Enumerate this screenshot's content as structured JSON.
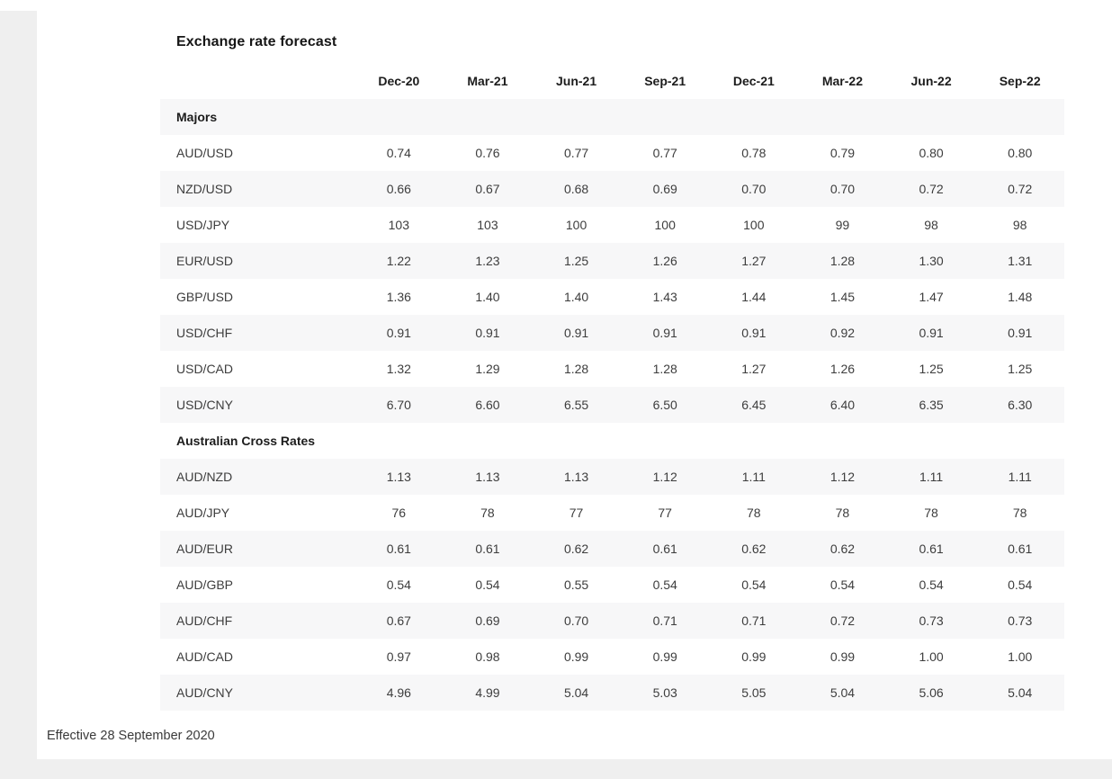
{
  "title": "Exchange rate forecast",
  "footnote": "Effective 28 September 2020",
  "colors": {
    "row_stripe": "#f7f7f8",
    "page_band": "#efefef",
    "body_text": "#3d3d3d",
    "heading_text": "#1c1c1c"
  },
  "chart_data": {
    "type": "table",
    "title": "Exchange rate forecast",
    "columns": [
      "Dec-20",
      "Mar-21",
      "Jun-21",
      "Sep-21",
      "Dec-21",
      "Mar-22",
      "Jun-22",
      "Sep-22"
    ],
    "sections": [
      {
        "name": "Majors",
        "rows": [
          {
            "pair": "AUD/USD",
            "values": [
              "0.74",
              "0.76",
              "0.77",
              "0.77",
              "0.78",
              "0.79",
              "0.80",
              "0.80"
            ]
          },
          {
            "pair": "NZD/USD",
            "values": [
              "0.66",
              "0.67",
              "0.68",
              "0.69",
              "0.70",
              "0.70",
              "0.72",
              "0.72"
            ]
          },
          {
            "pair": "USD/JPY",
            "values": [
              "103",
              "103",
              "100",
              "100",
              "100",
              "99",
              "98",
              "98"
            ]
          },
          {
            "pair": "EUR/USD",
            "values": [
              "1.22",
              "1.23",
              "1.25",
              "1.26",
              "1.27",
              "1.28",
              "1.30",
              "1.31"
            ]
          },
          {
            "pair": "GBP/USD",
            "values": [
              "1.36",
              "1.40",
              "1.40",
              "1.43",
              "1.44",
              "1.45",
              "1.47",
              "1.48"
            ]
          },
          {
            "pair": "USD/CHF",
            "values": [
              "0.91",
              "0.91",
              "0.91",
              "0.91",
              "0.91",
              "0.92",
              "0.91",
              "0.91"
            ]
          },
          {
            "pair": "USD/CAD",
            "values": [
              "1.32",
              "1.29",
              "1.28",
              "1.28",
              "1.27",
              "1.26",
              "1.25",
              "1.25"
            ]
          },
          {
            "pair": "USD/CNY",
            "values": [
              "6.70",
              "6.60",
              "6.55",
              "6.50",
              "6.45",
              "6.40",
              "6.35",
              "6.30"
            ]
          }
        ]
      },
      {
        "name": "Australian Cross Rates",
        "rows": [
          {
            "pair": "AUD/NZD",
            "values": [
              "1.13",
              "1.13",
              "1.13",
              "1.12",
              "1.11",
              "1.12",
              "1.11",
              "1.11"
            ]
          },
          {
            "pair": "AUD/JPY",
            "values": [
              "76",
              "78",
              "77",
              "77",
              "78",
              "78",
              "78",
              "78"
            ]
          },
          {
            "pair": "AUD/EUR",
            "values": [
              "0.61",
              "0.61",
              "0.62",
              "0.61",
              "0.62",
              "0.62",
              "0.61",
              "0.61"
            ]
          },
          {
            "pair": "AUD/GBP",
            "values": [
              "0.54",
              "0.54",
              "0.55",
              "0.54",
              "0.54",
              "0.54",
              "0.54",
              "0.54"
            ]
          },
          {
            "pair": "AUD/CHF",
            "values": [
              "0.67",
              "0.69",
              "0.70",
              "0.71",
              "0.71",
              "0.72",
              "0.73",
              "0.73"
            ]
          },
          {
            "pair": "AUD/CAD",
            "values": [
              "0.97",
              "0.98",
              "0.99",
              "0.99",
              "0.99",
              "0.99",
              "1.00",
              "1.00"
            ]
          },
          {
            "pair": "AUD/CNY",
            "values": [
              "4.96",
              "4.99",
              "5.04",
              "5.03",
              "5.05",
              "5.04",
              "5.06",
              "5.04"
            ]
          }
        ]
      }
    ],
    "footnote": "Effective 28 September 2020",
    "layout": {
      "grid": false,
      "striped_rows": true,
      "value_alignment": "center"
    }
  }
}
